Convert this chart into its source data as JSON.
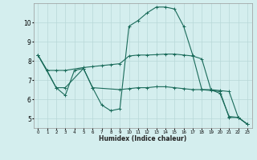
{
  "xlabel": "Humidex (Indice chaleur)",
  "background_color": "#d4eeee",
  "grid_color": "#b8d8d8",
  "line_color": "#1a6b5a",
  "xlim": [
    -0.5,
    23.5
  ],
  "ylim": [
    4.5,
    11.0
  ],
  "yticks": [
    5,
    6,
    7,
    8,
    9,
    10
  ],
  "xticks": [
    0,
    1,
    2,
    3,
    4,
    5,
    6,
    7,
    8,
    9,
    10,
    11,
    12,
    13,
    14,
    15,
    16,
    17,
    18,
    19,
    20,
    21,
    22,
    23
  ],
  "series1_x": [
    0,
    1,
    2,
    3,
    4,
    5,
    6,
    7,
    8,
    9,
    10,
    11,
    12,
    13,
    14,
    15,
    16,
    17,
    18,
    19,
    20,
    21,
    22,
    23
  ],
  "series1_y": [
    8.3,
    7.5,
    6.6,
    6.2,
    7.5,
    7.6,
    6.6,
    5.7,
    5.4,
    5.5,
    9.8,
    10.1,
    10.5,
    10.8,
    10.8,
    10.7,
    9.8,
    8.3,
    6.5,
    6.5,
    6.3,
    5.1,
    5.05,
    4.7
  ],
  "series2_x": [
    0,
    2,
    3,
    5,
    6,
    9,
    10,
    11,
    12,
    13,
    14,
    15,
    16,
    17,
    18,
    19,
    20,
    21,
    22,
    23
  ],
  "series2_y": [
    8.3,
    6.6,
    6.6,
    7.6,
    6.6,
    6.5,
    6.55,
    6.6,
    6.6,
    6.65,
    6.65,
    6.6,
    6.55,
    6.5,
    6.5,
    6.45,
    6.4,
    5.05,
    5.05,
    4.7
  ],
  "series3_x": [
    0,
    1,
    2,
    3,
    5,
    6,
    7,
    8,
    9,
    10,
    11,
    12,
    13,
    14,
    15,
    16,
    17,
    18,
    19,
    20,
    21,
    22,
    23
  ],
  "series3_y": [
    8.3,
    7.5,
    7.5,
    7.5,
    7.65,
    7.7,
    7.75,
    7.8,
    7.85,
    8.25,
    8.3,
    8.3,
    8.32,
    8.35,
    8.35,
    8.3,
    8.25,
    8.1,
    6.5,
    6.45,
    6.4,
    5.05,
    4.7
  ]
}
